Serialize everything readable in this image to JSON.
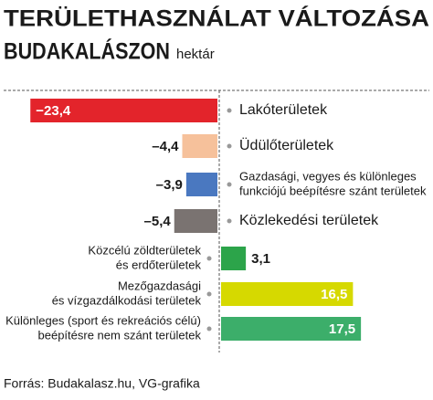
{
  "chart_data": {
    "type": "bar",
    "orientation": "horizontal",
    "title": [
      "TERÜLETHASZNÁLAT VÁLTOZÁSA",
      "BUDAKALÁSZON"
    ],
    "unit": "hektár",
    "source": "Forrás: Budakalasz.hu, VG-grafika",
    "categories": [
      [
        "Lakóterületek"
      ],
      [
        "Üdülőterületek"
      ],
      [
        "Gazdasági, vegyes és különleges",
        "funkciójú beépítésre szánt területek"
      ],
      [
        "Közlekedési területek"
      ],
      [
        "Közcélú zöldterületek",
        "és erdőterületek"
      ],
      [
        "Mezőgazdasági",
        "és vízgazdálkodási területek"
      ],
      [
        "Különleges (sport és rekreációs célú)",
        "beépítésre nem szánt területek"
      ]
    ],
    "values": [
      -23.4,
      -4.4,
      -3.9,
      -5.4,
      3.1,
      16.5,
      17.5
    ],
    "value_labels": [
      "−23,4",
      "–4,4",
      "–3,9",
      "–5,4",
      "3,1",
      "16,5",
      "17,5"
    ],
    "colors": [
      "#e3242b",
      "#f6c19b",
      "#4a78c0",
      "#7a7371",
      "#2ca44a",
      "#d6d900",
      "#3cae6a"
    ]
  }
}
